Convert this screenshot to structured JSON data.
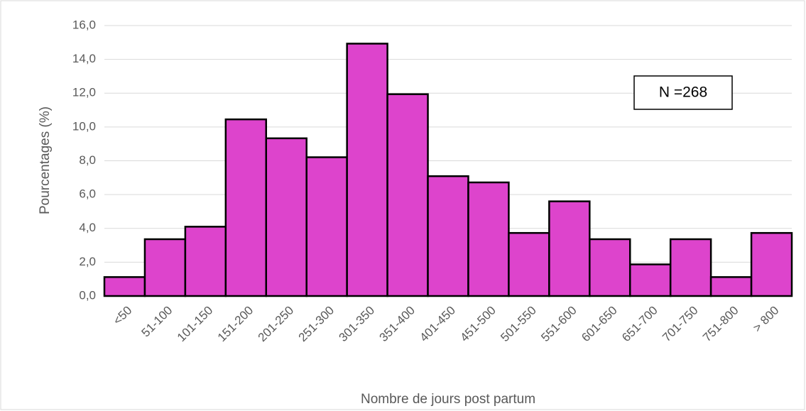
{
  "chart_data": {
    "type": "bar",
    "xlabel": "Nombre de jours post partum",
    "ylabel": "Pourcentages (%)",
    "annotation": "N =268",
    "categories": [
      "<50",
      "51-100",
      "101-150",
      "151-200",
      "201-250",
      "251-300",
      "301-350",
      "351-400",
      "401-450",
      "451-500",
      "501-550",
      "551-600",
      "601-650",
      "651-700",
      "701-750",
      "751-800",
      "> 800"
    ],
    "values": [
      1.12,
      3.36,
      4.1,
      10.45,
      9.33,
      8.21,
      14.93,
      11.94,
      7.09,
      6.72,
      3.73,
      5.6,
      3.36,
      1.87,
      3.36,
      1.12,
      3.73
    ],
    "color": "#dd44cc",
    "ylim": [
      0,
      16
    ],
    "yticks": [
      {
        "value": 0,
        "label": "0,0"
      },
      {
        "value": 2,
        "label": "2,0"
      },
      {
        "value": 4,
        "label": "4,0"
      },
      {
        "value": 6,
        "label": "6,0"
      },
      {
        "value": 8,
        "label": "8,0"
      },
      {
        "value": 10,
        "label": "10,0"
      },
      {
        "value": 12,
        "label": "12,0"
      },
      {
        "value": 14,
        "label": "14,0"
      },
      {
        "value": 16,
        "label": "16,0"
      }
    ],
    "grid": true
  }
}
